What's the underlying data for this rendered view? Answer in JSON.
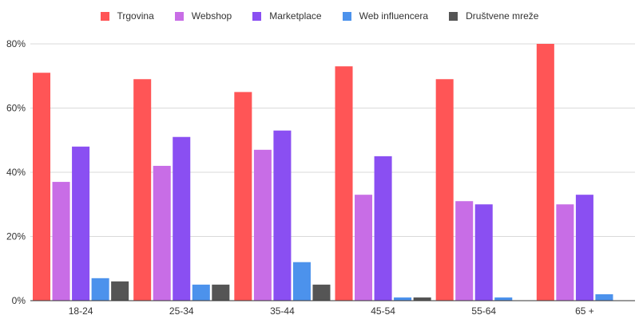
{
  "chart_data": {
    "type": "bar",
    "categories": [
      "18-24",
      "25-34",
      "35-44",
      "45-54",
      "55-64",
      "65 +"
    ],
    "series": [
      {
        "name": "Trgovina",
        "color": "#ff5556",
        "values": [
          71,
          69,
          65,
          73,
          69,
          80
        ]
      },
      {
        "name": "Webshop",
        "color": "#c86de6",
        "values": [
          37,
          42,
          47,
          33,
          31,
          30
        ]
      },
      {
        "name": "Marketplace",
        "color": "#8a4ff2",
        "values": [
          48,
          51,
          53,
          45,
          30,
          33
        ]
      },
      {
        "name": "Web influencera",
        "color": "#4c92ec",
        "values": [
          7,
          5,
          12,
          1,
          1,
          2
        ]
      },
      {
        "name": "Društvene mreže",
        "color": "#555555",
        "values": [
          6,
          5,
          5,
          1,
          0,
          0
        ]
      }
    ],
    "yticks": [
      "0%",
      "20%",
      "40%",
      "60%",
      "80%"
    ],
    "ylim": [
      0,
      80
    ],
    "grid": true,
    "legend_position": "top-center",
    "title": "",
    "xlabel": "",
    "ylabel": ""
  }
}
